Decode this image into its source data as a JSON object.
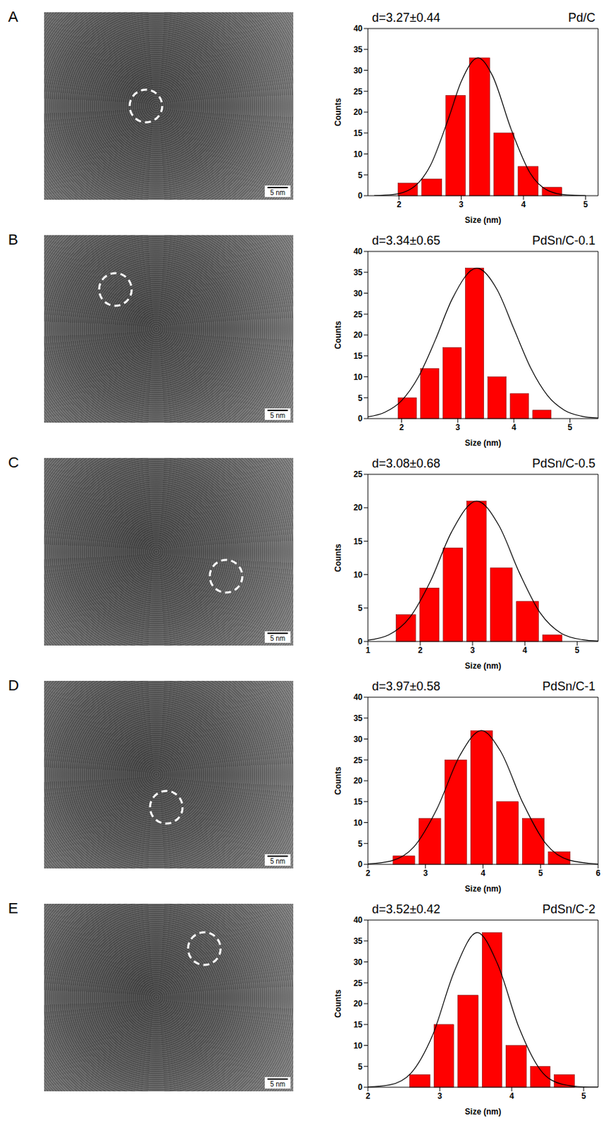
{
  "chart_data": [
    {
      "panel": "A",
      "type": "histogram",
      "title": "Pd/C",
      "annotation": "d=3.27±0.44",
      "x_label": "Size (nm)",
      "y_label": "Counts",
      "bins": [
        1.95,
        2.33,
        2.72,
        3.1,
        3.49,
        3.88,
        4.27,
        4.65
      ],
      "counts": [
        3,
        4,
        24,
        33,
        15,
        7,
        2
      ],
      "color": "#ff0000",
      "fit": {
        "x": [
          1.6,
          1.9,
          2.2,
          2.5,
          2.8,
          3.0,
          3.27,
          3.5,
          3.8,
          4.1,
          4.4,
          4.7,
          5.0
        ],
        "values": [
          0.02,
          0.26,
          1.7,
          7.1,
          18.7,
          27.3,
          33,
          28.8,
          16.0,
          5.6,
          1.2,
          0.17,
          0.01
        ],
        "color": "#000000"
      },
      "xlim": [
        1.5,
        5.2
      ],
      "xticks": [
        2,
        3,
        4,
        5
      ],
      "ylim": [
        0,
        40
      ],
      "yticks": [
        0,
        5,
        10,
        15,
        20,
        25,
        30,
        35,
        40
      ],
      "image": {
        "scale_bar": "5 nm"
      }
    },
    {
      "panel": "B",
      "type": "histogram",
      "title": "PdSn/C-0.1",
      "annotation": "d=3.34±0.65",
      "x_label": "Size (nm)",
      "y_label": "Counts",
      "bins": [
        1.9,
        2.3,
        2.7,
        3.1,
        3.5,
        3.9,
        4.3,
        4.7
      ],
      "counts": [
        5,
        12,
        17,
        36,
        10,
        6,
        2
      ],
      "color": "#ff0000",
      "fit": {
        "x": [
          1.4,
          1.7,
          2.0,
          2.3,
          2.6,
          2.9,
          3.34,
          3.7,
          4.0,
          4.3,
          4.6,
          4.9,
          5.2,
          5.5
        ],
        "values": [
          0.42,
          1.5,
          4.3,
          10.0,
          18.8,
          28.6,
          36,
          30.9,
          21.5,
          12.1,
          5.5,
          2.0,
          0.6,
          0.14
        ],
        "color": "#000000"
      },
      "xlim": [
        1.4,
        5.5
      ],
      "xticks": [
        2,
        3,
        4,
        5
      ],
      "ylim": [
        0,
        40
      ],
      "yticks": [
        0,
        5,
        10,
        15,
        20,
        25,
        30,
        35,
        40
      ],
      "image": {
        "scale_bar": "5 nm"
      }
    },
    {
      "panel": "C",
      "type": "histogram",
      "title": "PdSn/C-0.5",
      "annotation": "d=3.08±0.68",
      "x_label": "Size (nm)",
      "y_label": "Counts",
      "bins": [
        1.5,
        1.95,
        2.4,
        2.85,
        3.3,
        3.8,
        4.3,
        4.75
      ],
      "counts": [
        4,
        8,
        14,
        21,
        11,
        6,
        1
      ],
      "color": "#ff0000",
      "fit": {
        "x": [
          1.0,
          1.4,
          1.8,
          2.2,
          2.6,
          3.08,
          3.5,
          3.9,
          4.3,
          4.7,
          5.1,
          5.4
        ],
        "values": [
          0.2,
          1.0,
          3.6,
          9.1,
          16.4,
          21,
          17.4,
          10.2,
          4.2,
          1.2,
          0.26,
          0.06
        ],
        "color": "#000000"
      },
      "xlim": [
        1,
        5.4
      ],
      "xticks": [
        1,
        2,
        3,
        4,
        5
      ],
      "ylim": [
        0,
        25
      ],
      "yticks": [
        0,
        5,
        10,
        15,
        20,
        25
      ],
      "image": {
        "scale_bar": "5 nm"
      }
    },
    {
      "panel": "D",
      "type": "histogram",
      "title": "PdSn/C-1",
      "annotation": "d=3.97±0.58",
      "x_label": "Size (nm)",
      "y_label": "Counts",
      "bins": [
        2.4,
        2.85,
        3.3,
        3.75,
        4.2,
        4.65,
        5.1,
        5.55
      ],
      "counts": [
        2,
        11,
        25,
        32,
        15,
        11,
        3
      ],
      "color": "#ff0000",
      "fit": {
        "x": [
          2.0,
          2.4,
          2.8,
          3.2,
          3.6,
          3.97,
          4.3,
          4.7,
          5.1,
          5.5,
          6.0
        ],
        "values": [
          0.1,
          0.8,
          4.2,
          13.3,
          26.1,
          32,
          27.2,
          14.5,
          4.8,
          1.0,
          0.07
        ],
        "color": "#000000"
      },
      "xlim": [
        2,
        6
      ],
      "xticks": [
        2,
        3,
        4,
        5,
        6
      ],
      "ylim": [
        0,
        40
      ],
      "yticks": [
        0,
        5,
        10,
        15,
        20,
        25,
        30,
        35,
        40
      ],
      "image": {
        "scale_bar": "5 nm"
      }
    },
    {
      "panel": "E",
      "type": "histogram",
      "title": "PdSn/C-2",
      "annotation": "d=3.52±0.42",
      "x_label": "Size (nm)",
      "y_label": "Counts",
      "bins": [
        2.55,
        2.89,
        3.22,
        3.56,
        3.89,
        4.23,
        4.56,
        4.9
      ],
      "counts": [
        3,
        15,
        22,
        37,
        10,
        5,
        3
      ],
      "color": "#ff0000",
      "fit": {
        "x": [
          2.0,
          2.3,
          2.6,
          2.9,
          3.2,
          3.52,
          3.8,
          4.1,
          4.4,
          4.7,
          5.0,
          5.2
        ],
        "values": [
          0.05,
          0.54,
          3.4,
          12.5,
          27.7,
          37,
          29.6,
          14.3,
          4.1,
          0.72,
          0.075,
          0.01
        ],
        "color": "#000000"
      },
      "xlim": [
        2,
        5.2
      ],
      "xticks": [
        2,
        3,
        4,
        5
      ],
      "ylim": [
        0,
        40
      ],
      "yticks": [
        0,
        5,
        10,
        15,
        20,
        25,
        30,
        35,
        40
      ],
      "image": {
        "scale_bar": "5 nm"
      }
    }
  ]
}
